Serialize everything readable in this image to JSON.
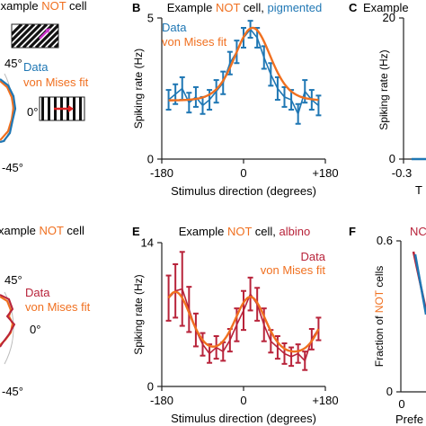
{
  "colors": {
    "blue": "#1f77b4",
    "orange": "#f07020",
    "red": "#b8233a",
    "axis": "#222222",
    "polar_grid": "#bbbbbb"
  },
  "icons": [
    "diagonal-grating-icon",
    "vertical-grating-icon"
  ],
  "panels": {
    "A": {
      "title_prefix": "Example ",
      "title_not": "NOT",
      "title_suffix": " cell",
      "legend": [
        "Data",
        "von Mises fit"
      ],
      "ticks": [
        "45°",
        "0°",
        "-45°"
      ]
    },
    "B": {
      "letter": "B"
    },
    "C": {
      "letter": "C",
      "title_prefix": "Example",
      "ytick_top": "20",
      "ytick_bottom": "0",
      "ylabel": "Spiking rate (Hz)",
      "xtick": "-0.3",
      "xlabel": "T"
    },
    "D": {
      "title_prefix": "xample ",
      "title_not": "NOT",
      "title_suffix": " cell",
      "legend": [
        "Data",
        "von Mises fit"
      ],
      "ticks": [
        "45°",
        "0°",
        "-45°"
      ]
    },
    "E": {
      "letter": "E"
    },
    "F": {
      "letter": "F",
      "ytick_top": "0.6",
      "ytick_bottom": "0",
      "ylabel_prefix": "Fraction of ",
      "ylabel_not": "NOT",
      "ylabel_suffix": " cells",
      "legend_partial": "NC",
      "xlabel": "Prefe"
    }
  },
  "chart_data": [
    {
      "panel": "B",
      "type": "line",
      "title_prefix": "Example ",
      "title_not": "NOT",
      "title_mid": " cell, ",
      "title_condition": "pigmented",
      "xlabel": "Stimulus direction (degrees)",
      "ylabel": "Spiking rate (Hz)",
      "xlim": [
        -180,
        180
      ],
      "ylim": [
        0,
        5
      ],
      "xticks": [
        -180,
        0,
        180
      ],
      "xtick_labels": [
        "-180",
        "0",
        "+180"
      ],
      "yticks": [
        0,
        5
      ],
      "ytick_labels": [
        "0",
        "5"
      ],
      "legend": [
        "Data",
        "von Mises fit"
      ],
      "legend_position": "top-left",
      "series": [
        {
          "name": "Data",
          "x": [
            -165,
            -150,
            -135,
            -120,
            -105,
            -90,
            -75,
            -60,
            -45,
            -30,
            -15,
            0,
            15,
            30,
            45,
            60,
            75,
            90,
            105,
            120,
            135,
            150,
            165
          ],
          "y": [
            2.1,
            2.3,
            2.5,
            2.0,
            2.2,
            1.9,
            2.1,
            2.4,
            2.7,
            3.4,
            3.8,
            4.3,
            4.6,
            4.3,
            3.6,
            3.0,
            2.5,
            2.2,
            2.1,
            1.6,
            2.4,
            2.1,
            1.9
          ],
          "err": [
            0.35,
            0.35,
            0.4,
            0.35,
            0.35,
            0.3,
            0.35,
            0.4,
            0.4,
            0.4,
            0.4,
            0.35,
            0.3,
            0.35,
            0.4,
            0.4,
            0.4,
            0.35,
            0.35,
            0.35,
            0.4,
            0.35,
            0.35
          ]
        },
        {
          "name": "von Mises fit",
          "baseline": 2.05,
          "amplitude": 2.6,
          "kappa": 2.2,
          "mu": 20,
          "x_range": [
            -165,
            165
          ]
        }
      ]
    },
    {
      "panel": "E",
      "type": "line",
      "title_prefix": "Example ",
      "title_not": "NOT",
      "title_mid": " cell, ",
      "title_condition": "albino",
      "xlabel": "Stimulus direction (degrees)",
      "ylabel": "Spiking rate (Hz)",
      "xlim": [
        -180,
        180
      ],
      "ylim": [
        0,
        14
      ],
      "xticks": [
        -180,
        0,
        180
      ],
      "xtick_labels": [
        "-180",
        "0",
        "+180"
      ],
      "yticks": [
        0,
        14
      ],
      "ytick_labels": [
        "0",
        "14"
      ],
      "legend": [
        "Data",
        "von Mises fit"
      ],
      "legend_position": "top-right",
      "series": [
        {
          "name": "Data",
          "x": [
            -165,
            -150,
            -135,
            -120,
            -105,
            -90,
            -75,
            -60,
            -45,
            -30,
            -15,
            0,
            15,
            30,
            45,
            60,
            75,
            90,
            105,
            120,
            135,
            150,
            165
          ],
          "y": [
            8.6,
            9.3,
            9.5,
            7.5,
            5.5,
            4.1,
            3.2,
            3.8,
            3.4,
            4.5,
            6.0,
            7.4,
            9.0,
            8.0,
            6.0,
            4.4,
            3.8,
            3.2,
            2.9,
            3.2,
            2.5,
            4.6,
            5.6
          ],
          "err": [
            2.2,
            2.6,
            3.6,
            2.2,
            1.6,
            1.1,
            0.9,
            1.1,
            0.9,
            1.1,
            1.6,
            1.9,
            1.6,
            1.6,
            1.6,
            1.1,
            1.1,
            1.0,
            0.9,
            0.9,
            0.9,
            1.0,
            1.1
          ]
        },
        {
          "name": "von Mises fit",
          "baseline": 3.0,
          "amplitude1": 6.2,
          "mu1": -150,
          "amplitude2": 5.7,
          "mu2": 15,
          "kappa": 3.0,
          "x_range": [
            -165,
            165
          ]
        }
      ]
    }
  ]
}
